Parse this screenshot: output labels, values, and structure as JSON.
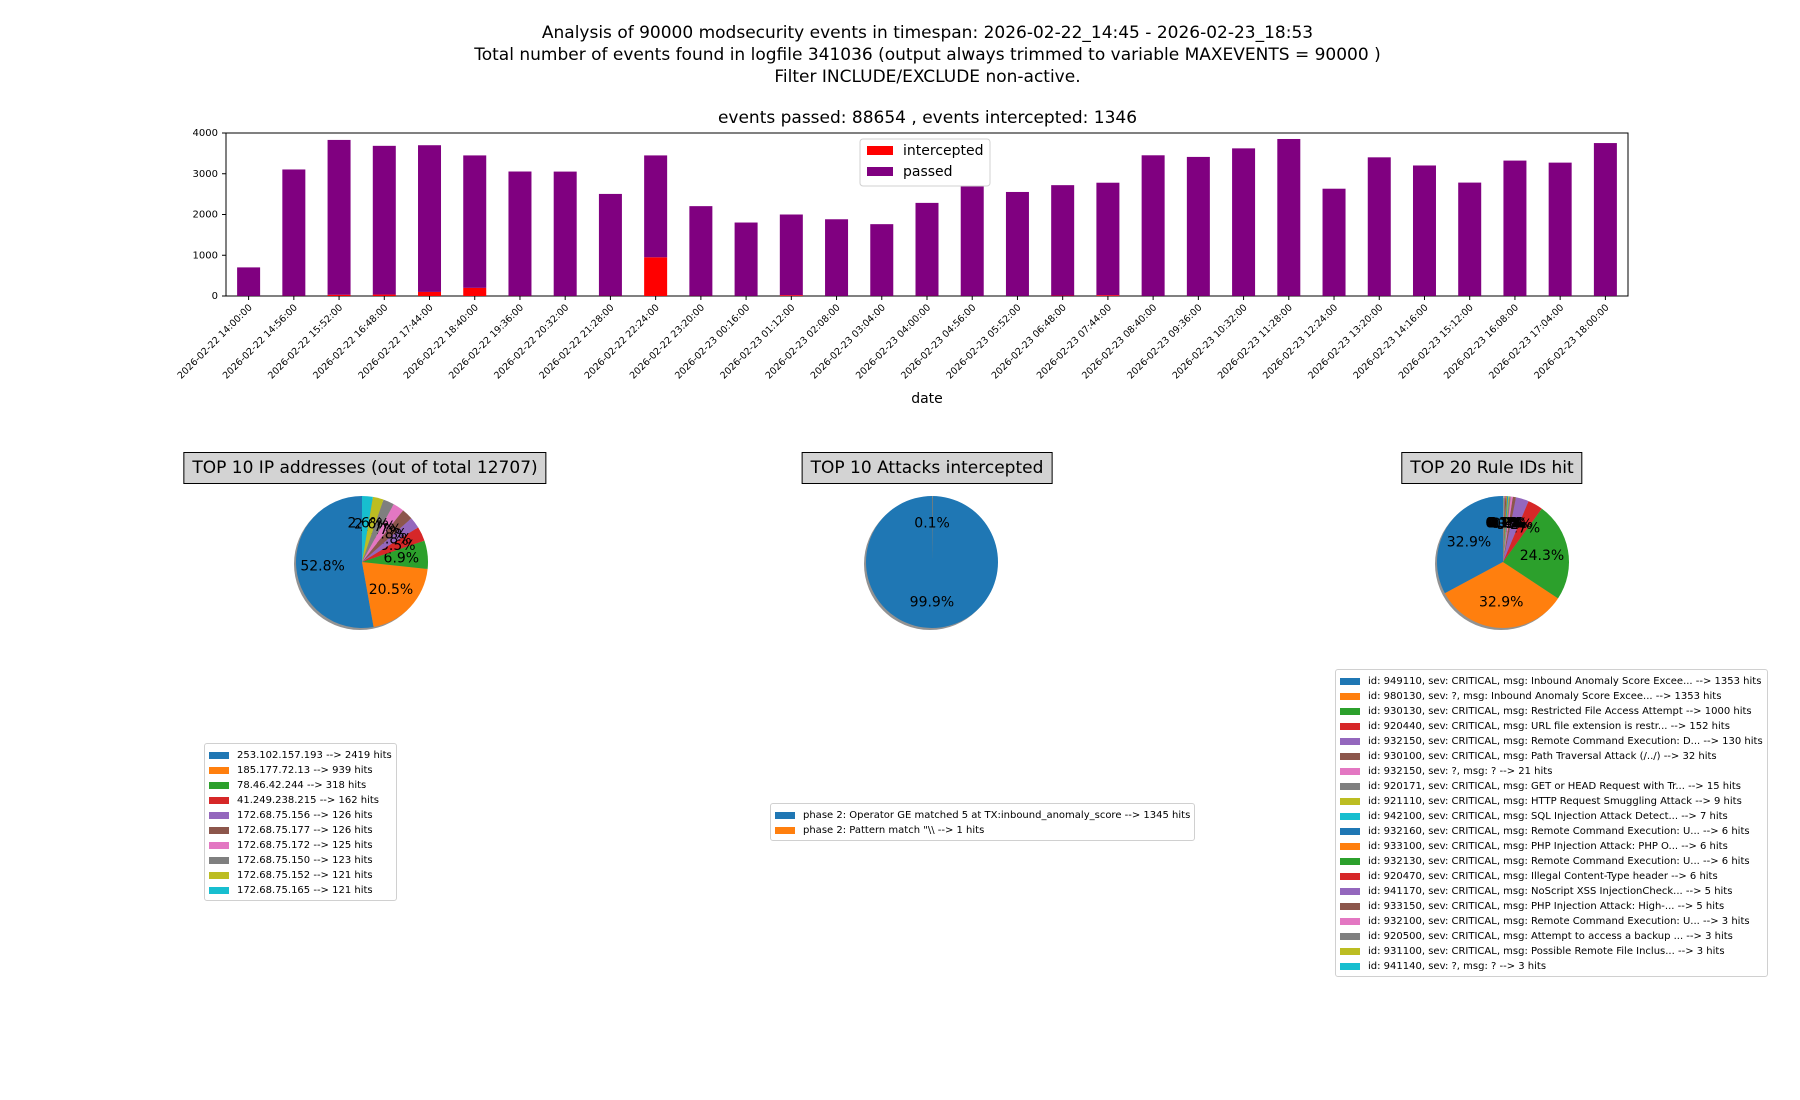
{
  "title": {
    "line1": "Analysis of 90000 modsecurity events in timespan: 2026-02-22_14:45 - 2026-02-23_18:53",
    "line2": "Total number of events found in logfile 341036 (output always trimmed to variable MAXEVENTS = 90000 )",
    "line3": "Filter INCLUDE/EXCLUDE non-active."
  },
  "chart_data": [
    {
      "type": "bar",
      "stacked": true,
      "title": "events passed: 88654 , events intercepted: 1346",
      "xlabel": "date",
      "ylabel": "",
      "ylim": [
        0,
        4000
      ],
      "yticks": [
        0,
        1000,
        2000,
        3000,
        4000
      ],
      "legend": [
        "intercepted",
        "passed"
      ],
      "legend_colors": [
        "#ff0000",
        "#800080"
      ],
      "categories": [
        "2026-02-22 14:00:00",
        "2026-02-22 14:56:00",
        "2026-02-22 15:52:00",
        "2026-02-22 16:48:00",
        "2026-02-22 17:44:00",
        "2026-02-22 18:40:00",
        "2026-02-22 19:36:00",
        "2026-02-22 20:32:00",
        "2026-02-22 21:28:00",
        "2026-02-22 22:24:00",
        "2026-02-22 23:20:00",
        "2026-02-23 00:16:00",
        "2026-02-23 01:12:00",
        "2026-02-23 02:08:00",
        "2026-02-23 03:04:00",
        "2026-02-23 04:00:00",
        "2026-02-23 04:56:00",
        "2026-02-23 05:52:00",
        "2026-02-23 06:48:00",
        "2026-02-23 07:44:00",
        "2026-02-23 08:40:00",
        "2026-02-23 09:36:00",
        "2026-02-23 10:32:00",
        "2026-02-23 11:28:00",
        "2026-02-23 12:24:00",
        "2026-02-23 13:20:00",
        "2026-02-23 14:16:00",
        "2026-02-23 15:12:00",
        "2026-02-23 16:08:00",
        "2026-02-23 17:04:00",
        "2026-02-23 18:00:00"
      ],
      "series": [
        {
          "name": "intercepted",
          "values": [
            2,
            5,
            30,
            35,
            100,
            200,
            5,
            3,
            5,
            950,
            5,
            3,
            20,
            3,
            3,
            5,
            3,
            3,
            10,
            20,
            3,
            3,
            3,
            3,
            3,
            3,
            3,
            3,
            3,
            3,
            3
          ]
        },
        {
          "name": "passed",
          "values": [
            700,
            3100,
            3800,
            3650,
            3600,
            3250,
            3050,
            3050,
            2500,
            2500,
            2200,
            1800,
            1980,
            1880,
            1760,
            2280,
            2800,
            2550,
            2710,
            2760,
            3450,
            3410,
            3620,
            3850,
            2630,
            3400,
            3200,
            2780,
            3320,
            3270,
            3750
          ]
        }
      ]
    },
    {
      "type": "pie",
      "title": "TOP 10 IP addresses (out of total 12707)",
      "labels": [
        "253.102.157.193 --> 2419 hits",
        "185.177.72.13 --> 939 hits",
        "78.46.42.244 --> 318 hits",
        "41.249.238.215 --> 162 hits",
        "172.68.75.156 --> 126 hits",
        "172.68.75.177 --> 126 hits",
        "172.68.75.172 --> 125 hits",
        "172.68.75.150 --> 123 hits",
        "172.68.75.152 --> 121 hits",
        "172.68.75.165 --> 121 hits"
      ],
      "values": [
        2419,
        939,
        318,
        162,
        126,
        126,
        125,
        123,
        121,
        121
      ],
      "pct_labels": [
        "52.8%",
        "20.5%",
        "6.9%",
        "3.5%",
        "2.8%",
        "2.8%",
        "2.7%",
        "2.7%",
        "2.6%",
        "2.6%"
      ]
    },
    {
      "type": "pie",
      "title": "TOP 10 Attacks intercepted",
      "labels": [
        "phase 2: Operator GE matched 5 at TX:inbound_anomaly_score --> 1345 hits",
        "phase 2: Pattern match \"\\\\ --> 1 hits"
      ],
      "values": [
        1345,
        1
      ],
      "pct_labels": [
        "99.9%",
        "0.1%"
      ]
    },
    {
      "type": "pie",
      "title": "TOP 20 Rule IDs hit",
      "labels": [
        "id: 949110, sev: CRITICAL, msg: Inbound Anomaly Score Excee... --> 1353 hits",
        "id: 980130, sev: ?, msg: Inbound Anomaly Score Excee... --> 1353 hits",
        "id: 930130, sev: CRITICAL, msg: Restricted File Access Attempt --> 1000 hits",
        "id: 920440, sev: CRITICAL, msg: URL file extension is restr... --> 152 hits",
        "id: 932150, sev: CRITICAL, msg: Remote Command Execution: D... --> 130 hits",
        "id: 930100, sev: CRITICAL, msg: Path Traversal Attack (/../) --> 32 hits",
        "id: 932150, sev: ?, msg: ? --> 21 hits",
        "id: 920171, sev: CRITICAL, msg: GET or HEAD Request with Tr... --> 15 hits",
        "id: 921110, sev: CRITICAL, msg: HTTP Request Smuggling Attack --> 9 hits",
        "id: 942100, sev: CRITICAL, msg: SQL Injection Attack Detect... --> 7 hits",
        "id: 932160, sev: CRITICAL, msg: Remote Command Execution: U... --> 6 hits",
        "id: 933100, sev: CRITICAL, msg: PHP Injection Attack: PHP O... --> 6 hits",
        "id: 932130, sev: CRITICAL, msg: Remote Command Execution: U... --> 6 hits",
        "id: 920470, sev: CRITICAL, msg: Illegal Content-Type header --> 6 hits",
        "id: 941170, sev: CRITICAL, msg: NoScript XSS InjectionCheck... --> 5 hits",
        "id: 933150, sev: CRITICAL, msg: PHP Injection Attack: High-... --> 5 hits",
        "id: 932100, sev: CRITICAL, msg: Remote Command Execution: U... --> 3 hits",
        "id: 920500, sev: CRITICAL, msg: Attempt to access a backup ... --> 3 hits",
        "id: 931100, sev: CRITICAL, msg: Possible Remote File Inclus... --> 3 hits",
        "id: 941140, sev: ?, msg: ? --> 3 hits"
      ],
      "values": [
        1353,
        1353,
        1000,
        152,
        130,
        32,
        21,
        15,
        9,
        7,
        6,
        6,
        6,
        6,
        5,
        5,
        3,
        3,
        3,
        3
      ],
      "pct_labels": [
        "32.9%",
        "32.9%",
        "24.3%",
        "3.7%",
        "3.2%",
        "0.8%",
        "0.5%",
        "0.4%",
        "0.2%",
        "0.2%",
        "0.1%",
        "0.1%",
        "0.1%",
        "0.1%",
        "0.1%",
        "0.1%",
        "0.1%",
        "0.1%",
        "0.1%",
        "0.1%"
      ]
    }
  ],
  "colors": [
    "#1f77b4",
    "#ff7f0e",
    "#2ca02c",
    "#d62728",
    "#9467bd",
    "#8c564b",
    "#e377c2",
    "#7f7f7f",
    "#bcbd22",
    "#17becf"
  ]
}
